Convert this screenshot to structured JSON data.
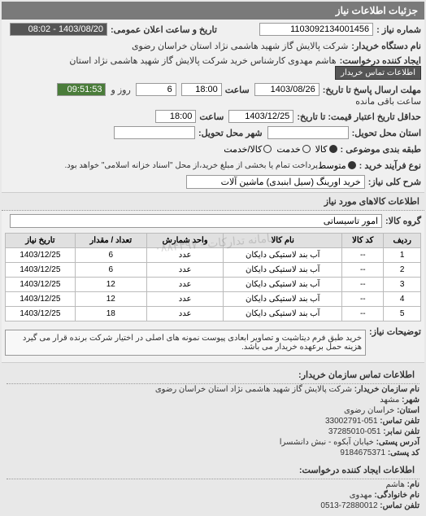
{
  "header": "جزئیات اطلاعات نیاز",
  "fields": {
    "need_no_label": "شماره نیاز :",
    "need_no": "1103092134001456",
    "date_label": "تاریخ و ساعت اعلان عمومی:",
    "date": "1403/08/20 - 08:02",
    "buyer_label": "نام دستگاه خریدار:",
    "buyer": "شرکت پالایش گاز شهید هاشمی نژاد   استان خراسان رضوی",
    "creator_label": "ایجاد کننده درخواست:",
    "creator": "هاشم مهدوی کارشناس خرید شرکت پالایش گاز شهید هاشمی نژاد   استان",
    "contact_btn": "اطلاعات تماس خریدار",
    "deadline_label": "مهلت ارسال پاسخ تا تاریخ:",
    "deadline_date": "1403/08/26",
    "time_label": "ساعت",
    "deadline_time": "18:00",
    "remain_days": "6",
    "days_label": "روز و",
    "remain_time": "09:51:53",
    "remain_label": "ساعت باقی مانده",
    "price_valid_label": "حداقل تاریخ اعتبار قیمت: تا تاریخ:",
    "price_valid_date": "1403/12/25",
    "price_valid_time": "18:00",
    "state_label": "استان محل تحویل:",
    "city_label": "شهر محل تحویل:",
    "subject_cat_label": "طبقه بندی موضوعی :",
    "subject_opts": [
      "کالا",
      "خدمت",
      "کالا/خدمت"
    ],
    "subject_sel": 0,
    "process_label": "نوع فرآیند خرید :",
    "process_opts": [
      "متوسط"
    ],
    "process_note": "پرداخت تمام یا بخشی از مبلغ خرید،از محل \"اسناد خزانه اسلامی\" خواهد بود.",
    "title_label": "شرح کلی نیاز:",
    "title": "خرید اورینگ (سیل ابنبدی) ماشین آلات",
    "goods_header": "اطلاعات کالاهای مورد نیاز",
    "group_label": "گروه کالا:",
    "group": "امور تاسیساتی"
  },
  "table": {
    "cols": [
      "ردیف",
      "کد کالا",
      "نام کالا",
      "واحد شمارش",
      "تعداد / مقدار",
      "تاریخ نیاز"
    ],
    "rows": [
      [
        "1",
        "--",
        "آب بند لاستیکی دایکان",
        "عدد",
        "6",
        "1403/12/25"
      ],
      [
        "2",
        "--",
        "آب بند لاستیکی دایکان",
        "عدد",
        "6",
        "1403/12/25"
      ],
      [
        "3",
        "--",
        "آب بند لاستیکی دایکان",
        "عدد",
        "12",
        "1403/12/25"
      ],
      [
        "4",
        "--",
        "آب بند لاستیکی دایکان",
        "عدد",
        "12",
        "1403/12/25"
      ],
      [
        "5",
        "--",
        "آب بند لاستیکی دایکان",
        "عدد",
        "18",
        "1403/12/25"
      ]
    ]
  },
  "desc": {
    "label": "توضیحات نیاز:",
    "text": "خرید طبق فرم دیتاشیت و تصاویر ابعادی پیوست نمونه های اصلی در اختیار شرکت برنده قرار می گیرد هزینه حمل برعهده خریدار می باشد."
  },
  "contact1": {
    "header": "اطلاعات تماس سازمان خریدار:",
    "org_label": "نام سازمان خریدار:",
    "org": "شرکت پالایش گاز شهید هاشمی نژاد استان خراسان رضوی",
    "city_label": "شهر:",
    "city": "مشهد",
    "state_label": "استان:",
    "state": "خراسان رضوی",
    "tel_label": "تلفن تماس:",
    "tel": "051-33002791",
    "fax_label": "تلفن نمابر:",
    "fax": "051-37285010",
    "addr_label": "آدرس پستی:",
    "addr": "خیابان آبکوه - نبش دانشسرا",
    "post_label": "کد پستی:",
    "post": "9184675371"
  },
  "contact2": {
    "header": "اطلاعات ایجاد کننده درخواست:",
    "name_label": "نام:",
    "name": "هاشم",
    "lname_label": "نام خانوادگی:",
    "lname": "مهدوی",
    "tel_label": "تلفن تماس:",
    "tel": "72880012-0513"
  },
  "watermark": "سامانه تدارکات - ۰۸۸۴۳۹۷"
}
